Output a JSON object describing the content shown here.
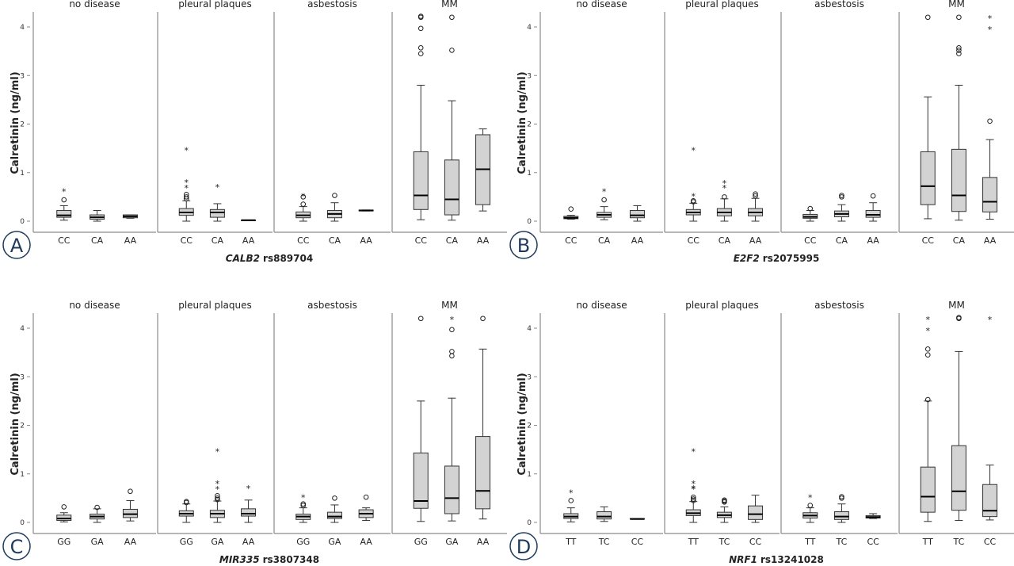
{
  "chart_data": [
    {
      "type": "boxplot",
      "panel_label": "A",
      "gene": "CALB2",
      "snp": "rs889704",
      "ylabel": "Calretinin (ng/ml)",
      "yticks": [
        0,
        1,
        2,
        3,
        4
      ],
      "ylim": [
        0,
        4.3
      ],
      "genotypes": [
        "CC",
        "CA",
        "AA"
      ],
      "facets": [
        {
          "title": "no disease",
          "boxes": [
            {
              "genotype": "CC",
              "stats": [
                0.02,
                0.08,
                0.12,
                0.22,
                0.32
              ],
              "outliers": [
                0.44
              ],
              "extremes": [
                0.63
              ]
            },
            {
              "genotype": "CA",
              "stats": [
                0,
                0.04,
                0.08,
                0.13,
                0.22
              ],
              "outliers": [],
              "extremes": []
            },
            {
              "genotype": "AA",
              "stats": [
                0.06,
                0.07,
                0.1,
                0.13,
                0.13
              ],
              "outliers": [],
              "extremes": []
            }
          ]
        },
        {
          "title": "pleural plaques",
          "boxes": [
            {
              "genotype": "CC",
              "stats": [
                0,
                0.12,
                0.18,
                0.26,
                0.42
              ],
              "outliers": [
                0.46,
                0.5,
                0.55
              ],
              "extremes": [
                0.7,
                0.82,
                1.48
              ]
            },
            {
              "genotype": "CA",
              "stats": [
                0,
                0.08,
                0.18,
                0.24,
                0.36
              ],
              "outliers": [],
              "extremes": [
                0.72
              ]
            },
            {
              "genotype": "AA",
              "stats": [
                0.01,
                0.01,
                0.02,
                0.02,
                0.02
              ],
              "outliers": [],
              "extremes": []
            }
          ]
        },
        {
          "title": "asbestosis",
          "boxes": [
            {
              "genotype": "CC",
              "stats": [
                0,
                0.07,
                0.12,
                0.19,
                0.3
              ],
              "outliers": [
                0.35,
                0.5
              ],
              "extremes": [
                0.53
              ]
            },
            {
              "genotype": "CA",
              "stats": [
                0,
                0.07,
                0.15,
                0.22,
                0.38
              ],
              "outliers": [
                0.53
              ],
              "extremes": []
            },
            {
              "genotype": "AA",
              "stats": [
                0.21,
                0.21,
                0.22,
                0.23,
                0.23
              ],
              "outliers": [],
              "extremes": []
            }
          ]
        },
        {
          "title": "MM",
          "boxes": [
            {
              "genotype": "CC",
              "stats": [
                0.03,
                0.24,
                0.53,
                1.43,
                2.8
              ],
              "outliers": [
                3.45,
                3.57,
                3.97,
                4.2,
                4.22
              ],
              "extremes": []
            },
            {
              "genotype": "CA",
              "stats": [
                0.02,
                0.13,
                0.45,
                1.26,
                2.48
              ],
              "outliers": [
                3.52,
                4.2
              ],
              "extremes": []
            },
            {
              "genotype": "AA",
              "stats": [
                0.21,
                0.34,
                1.07,
                1.78,
                1.9
              ],
              "outliers": [],
              "extremes": []
            }
          ]
        }
      ]
    },
    {
      "type": "boxplot",
      "panel_label": "B",
      "gene": "E2F2",
      "snp": "rs2075995",
      "ylabel": "Calretinin (ng/ml)",
      "yticks": [
        0,
        1,
        2,
        3,
        4
      ],
      "ylim": [
        0,
        4.3
      ],
      "genotypes": [
        "CC",
        "CA",
        "AA"
      ],
      "facets": [
        {
          "title": "no disease",
          "boxes": [
            {
              "genotype": "CC",
              "stats": [
                0.04,
                0.05,
                0.07,
                0.1,
                0.12
              ],
              "outliers": [
                0.25
              ],
              "extremes": []
            },
            {
              "genotype": "CA",
              "stats": [
                0.03,
                0.08,
                0.13,
                0.18,
                0.3
              ],
              "outliers": [
                0.44
              ],
              "extremes": [
                0.63
              ]
            },
            {
              "genotype": "AA",
              "stats": [
                0,
                0.07,
                0.12,
                0.22,
                0.32
              ],
              "outliers": [],
              "extremes": []
            }
          ]
        },
        {
          "title": "pleural plaques",
          "boxes": [
            {
              "genotype": "CC",
              "stats": [
                0,
                0.13,
                0.18,
                0.24,
                0.37
              ],
              "outliers": [
                0.4,
                0.42
              ],
              "extremes": [
                0.53,
                1.48
              ]
            },
            {
              "genotype": "CA",
              "stats": [
                0,
                0.11,
                0.18,
                0.26,
                0.46
              ],
              "outliers": [
                0.5
              ],
              "extremes": [
                0.7,
                0.8
              ]
            },
            {
              "genotype": "AA",
              "stats": [
                0,
                0.11,
                0.18,
                0.26,
                0.47
              ],
              "outliers": [
                0.52,
                0.56
              ],
              "extremes": []
            }
          ]
        },
        {
          "title": "asbestosis",
          "boxes": [
            {
              "genotype": "CC",
              "stats": [
                0,
                0.06,
                0.09,
                0.14,
                0.22
              ],
              "outliers": [
                0.26
              ],
              "extremes": []
            },
            {
              "genotype": "CA",
              "stats": [
                0,
                0.09,
                0.15,
                0.21,
                0.34
              ],
              "outliers": [
                0.5,
                0.53
              ],
              "extremes": []
            },
            {
              "genotype": "AA",
              "stats": [
                0,
                0.08,
                0.13,
                0.22,
                0.38
              ],
              "outliers": [
                0.52
              ],
              "extremes": []
            }
          ]
        },
        {
          "title": "MM",
          "boxes": [
            {
              "genotype": "CC",
              "stats": [
                0.05,
                0.34,
                0.72,
                1.43,
                2.56
              ],
              "outliers": [
                4.2
              ],
              "extremes": []
            },
            {
              "genotype": "CA",
              "stats": [
                0.02,
                0.2,
                0.53,
                1.48,
                2.8
              ],
              "outliers": [
                3.45,
                3.52,
                3.57,
                4.2
              ],
              "extremes": []
            },
            {
              "genotype": "AA",
              "stats": [
                0.04,
                0.19,
                0.4,
                0.9,
                1.68
              ],
              "outliers": [
                2.06
              ],
              "extremes": [
                3.97,
                4.2
              ]
            }
          ]
        }
      ]
    },
    {
      "type": "boxplot",
      "panel_label": "C",
      "gene": "MIR335",
      "snp": "rs3807348",
      "ylabel": "Calretinin (ng/ml)",
      "yticks": [
        0,
        1,
        2,
        3,
        4
      ],
      "ylim": [
        0,
        4.3
      ],
      "genotypes": [
        "GG",
        "GA",
        "AA"
      ],
      "facets": [
        {
          "title": "no disease",
          "boxes": [
            {
              "genotype": "GG",
              "stats": [
                0.01,
                0.04,
                0.08,
                0.15,
                0.2
              ],
              "outliers": [
                0.32
              ],
              "extremes": []
            },
            {
              "genotype": "GA",
              "stats": [
                0,
                0.07,
                0.12,
                0.17,
                0.28
              ],
              "outliers": [
                0.31
              ],
              "extremes": []
            },
            {
              "genotype": "AA",
              "stats": [
                0.03,
                0.1,
                0.17,
                0.27,
                0.45
              ],
              "outliers": [
                0.64
              ],
              "extremes": []
            }
          ]
        },
        {
          "title": "pleural plaques",
          "boxes": [
            {
              "genotype": "GG",
              "stats": [
                0,
                0.13,
                0.18,
                0.24,
                0.38
              ],
              "outliers": [
                0.41,
                0.43
              ],
              "extremes": []
            },
            {
              "genotype": "GA",
              "stats": [
                0,
                0.1,
                0.18,
                0.25,
                0.44
              ],
              "outliers": [
                0.47,
                0.5,
                0.55
              ],
              "extremes": [
                0.7,
                0.82,
                1.48
              ]
            },
            {
              "genotype": "AA",
              "stats": [
                0,
                0.13,
                0.18,
                0.28,
                0.46
              ],
              "outliers": [],
              "extremes": [
                0.72
              ]
            }
          ]
        },
        {
          "title": "asbestosis",
          "boxes": [
            {
              "genotype": "GG",
              "stats": [
                0,
                0.06,
                0.12,
                0.17,
                0.3
              ],
              "outliers": [
                0.35,
                0.38
              ],
              "extremes": [
                0.53
              ]
            },
            {
              "genotype": "GA",
              "stats": [
                0,
                0.08,
                0.12,
                0.21,
                0.36
              ],
              "outliers": [
                0.5
              ],
              "extremes": []
            },
            {
              "genotype": "AA",
              "stats": [
                0.04,
                0.1,
                0.18,
                0.26,
                0.3
              ],
              "outliers": [
                0.52
              ],
              "extremes": []
            }
          ]
        },
        {
          "title": "MM",
          "boxes": [
            {
              "genotype": "GG",
              "stats": [
                0.02,
                0.29,
                0.44,
                1.43,
                2.5
              ],
              "outliers": [
                4.2
              ],
              "extremes": []
            },
            {
              "genotype": "GA",
              "stats": [
                0.03,
                0.18,
                0.5,
                1.16,
                2.56
              ],
              "outliers": [
                3.43,
                3.52,
                3.97
              ],
              "extremes": [
                4.2
              ]
            },
            {
              "genotype": "AA",
              "stats": [
                0.07,
                0.28,
                0.65,
                1.77,
                3.57
              ],
              "outliers": [
                4.2
              ],
              "extremes": []
            }
          ]
        }
      ]
    },
    {
      "type": "boxplot",
      "panel_label": "D",
      "gene": "NRF1",
      "snp": "rs13241028",
      "ylabel": "Calretinin (ng/ml)",
      "yticks": [
        0,
        1,
        2,
        3,
        4
      ],
      "ylim": [
        0,
        4.3
      ],
      "genotypes": [
        "TT",
        "TC",
        "CC"
      ],
      "facets": [
        {
          "title": "no disease",
          "boxes": [
            {
              "genotype": "TT",
              "stats": [
                0.01,
                0.08,
                0.12,
                0.18,
                0.3
              ],
              "outliers": [
                0.45
              ],
              "extremes": [
                0.63
              ]
            },
            {
              "genotype": "TC",
              "stats": [
                0.02,
                0.07,
                0.12,
                0.22,
                0.32
              ],
              "outliers": [],
              "extremes": []
            },
            {
              "genotype": "CC",
              "stats": [
                0.07,
                0.07,
                0.07,
                0.08,
                0.08
              ],
              "outliers": [],
              "extremes": []
            }
          ]
        },
        {
          "title": "pleural plaques",
          "boxes": [
            {
              "genotype": "TT",
              "stats": [
                0,
                0.14,
                0.19,
                0.26,
                0.43
              ],
              "outliers": [
                0.45,
                0.48,
                0.52
              ],
              "extremes": [
                0.7,
                0.72,
                0.82,
                1.48
              ]
            },
            {
              "genotype": "TC",
              "stats": [
                0,
                0.1,
                0.15,
                0.21,
                0.32
              ],
              "outliers": [
                0.42,
                0.44,
                0.46
              ],
              "extremes": []
            },
            {
              "genotype": "CC",
              "stats": [
                0,
                0.06,
                0.17,
                0.34,
                0.56
              ],
              "outliers": [],
              "extremes": []
            }
          ]
        },
        {
          "title": "asbestosis",
          "boxes": [
            {
              "genotype": "TT",
              "stats": [
                0,
                0.09,
                0.14,
                0.2,
                0.3
              ],
              "outliers": [
                0.35
              ],
              "extremes": [
                0.53
              ]
            },
            {
              "genotype": "TC",
              "stats": [
                0,
                0.06,
                0.12,
                0.22,
                0.38
              ],
              "outliers": [
                0.5,
                0.53
              ],
              "extremes": []
            },
            {
              "genotype": "CC",
              "stats": [
                0.08,
                0.09,
                0.11,
                0.14,
                0.18
              ],
              "outliers": [],
              "extremes": []
            }
          ]
        },
        {
          "title": "MM",
          "boxes": [
            {
              "genotype": "TT",
              "stats": [
                0.02,
                0.21,
                0.53,
                1.14,
                2.5
              ],
              "outliers": [
                2.53,
                3.45,
                3.57
              ],
              "extremes": [
                3.97,
                4.2
              ]
            },
            {
              "genotype": "TC",
              "stats": [
                0.04,
                0.25,
                0.64,
                1.58,
                3.52
              ],
              "outliers": [
                4.2,
                4.22
              ],
              "extremes": []
            },
            {
              "genotype": "CC",
              "stats": [
                0.05,
                0.12,
                0.24,
                0.78,
                1.18
              ],
              "outliers": [],
              "extremes": [
                4.2
              ]
            }
          ]
        }
      ]
    }
  ],
  "colors": {
    "box_fill": "#d3d3d3",
    "frame": "#8a8a8a",
    "label_circle": "#1f3b5c"
  }
}
